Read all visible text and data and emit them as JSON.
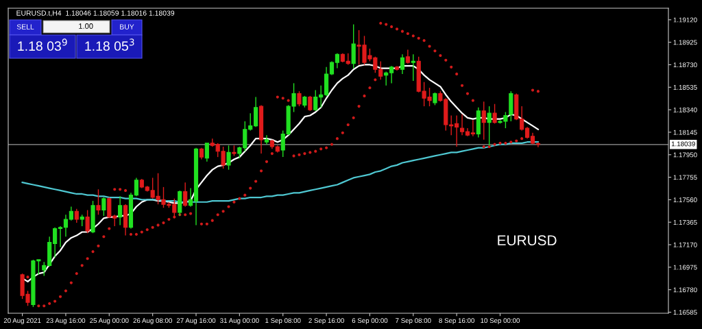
{
  "chart_data": {
    "type": "candlestick",
    "title": "EURUSD.t,H4  1.18046 1.18059 1.18016 1.18039",
    "annotations": [
      "EURUSD",
      "SELL",
      "1.00",
      "BUY",
      "1.18 03$^{9}$",
      "1.18 05$^{3}$"
    ],
    "categories": [
      "20 Aug 2021",
      null,
      null,
      null,
      null,
      null,
      null,
      null,
      "23 Aug 16:00",
      null,
      null,
      null,
      null,
      null,
      null,
      null,
      "25 Aug 00:00",
      null,
      null,
      null,
      null,
      null,
      null,
      null,
      "26 Aug 08:00",
      null,
      null,
      null,
      null,
      null,
      null,
      null,
      "27 Aug 16:00",
      null,
      null,
      null,
      null,
      null,
      null,
      null,
      "31 Aug 00:00",
      null,
      null,
      null,
      null,
      null,
      null,
      null,
      "1 Sep 08:00",
      null,
      null,
      null,
      null,
      null,
      null,
      null,
      "2 Sep 16:00",
      null,
      null,
      null,
      null,
      null,
      null,
      null,
      "6 Sep 00:00",
      null,
      null,
      null,
      null,
      null,
      null,
      null,
      "7 Sep 08:00",
      null,
      null,
      null,
      null,
      null,
      null,
      null,
      "8 Sep 16:00",
      null,
      null,
      null,
      null,
      null,
      null,
      null,
      "10 Sep 00:00",
      null,
      null,
      null,
      null,
      null,
      null,
      null
    ],
    "ohlc": [
      [
        1.1691,
        1.1692,
        1.167,
        1.1673
      ],
      [
        1.1674,
        1.1677,
        1.1664,
        1.1667
      ],
      [
        1.1665,
        1.1704,
        1.1663,
        1.1703
      ],
      [
        1.1703,
        1.1704,
        1.1691,
        1.1704
      ],
      [
        1.1695,
        1.1702,
        1.169,
        1.1699
      ],
      [
        1.1699,
        1.1724,
        1.1698,
        1.1719
      ],
      [
        1.1718,
        1.1732,
        1.1706,
        1.1731
      ],
      [
        1.1731,
        1.1733,
        1.1715,
        1.1732
      ],
      [
        1.1732,
        1.1743,
        1.1724,
        1.1739
      ],
      [
        1.1739,
        1.175,
        1.1738,
        1.1746
      ],
      [
        1.1746,
        1.1748,
        1.1736,
        1.1739
      ],
      [
        1.1739,
        1.1743,
        1.1733,
        1.1741
      ],
      [
        1.1741,
        1.1747,
        1.1727,
        1.1729
      ],
      [
        1.1728,
        1.1755,
        1.1727,
        1.1751
      ],
      [
        1.1751,
        1.1765,
        1.1743,
        1.1747
      ],
      [
        1.1747,
        1.1758,
        1.1742,
        1.1757
      ],
      [
        1.1757,
        1.1758,
        1.174,
        1.1741
      ],
      [
        1.1742,
        1.1743,
        1.1733,
        1.174
      ],
      [
        1.1741,
        1.1759,
        1.1734,
        1.1751
      ],
      [
        1.1751,
        1.1752,
        1.1725,
        1.1732
      ],
      [
        1.1732,
        1.1762,
        1.1731,
        1.176
      ],
      [
        1.176,
        1.1775,
        1.1759,
        1.1773
      ],
      [
        1.1773,
        1.1774,
        1.1766,
        1.1767
      ],
      [
        1.1767,
        1.1768,
        1.1763,
        1.1764
      ],
      [
        1.1764,
        1.1775,
        1.1757,
        1.1758
      ],
      [
        1.1759,
        1.1779,
        1.1752,
        1.1756
      ],
      [
        1.1756,
        1.1767,
        1.1749,
        1.1752
      ],
      [
        1.1752,
        1.1754,
        1.1749,
        1.1751
      ],
      [
        1.1752,
        1.1757,
        1.174,
        1.1745
      ],
      [
        1.1745,
        1.1764,
        1.1742,
        1.1763
      ],
      [
        1.1763,
        1.1771,
        1.175,
        1.1751
      ],
      [
        1.1751,
        1.1766,
        1.175,
        1.1756
      ],
      [
        1.1755,
        1.1801,
        1.1734,
        1.18
      ],
      [
        1.18,
        1.1801,
        1.1791,
        1.1793
      ],
      [
        1.1792,
        1.1805,
        1.1789,
        1.1805
      ],
      [
        1.1805,
        1.1809,
        1.1802,
        1.1803
      ],
      [
        1.1804,
        1.1805,
        1.1793,
        1.1798
      ],
      [
        1.1798,
        1.1802,
        1.1783,
        1.1786
      ],
      [
        1.1786,
        1.1803,
        1.1782,
        1.1797
      ],
      [
        1.1797,
        1.1803,
        1.1794,
        1.1796
      ],
      [
        1.1796,
        1.1802,
        1.1792,
        1.1801
      ],
      [
        1.1801,
        1.1824,
        1.1798,
        1.1817
      ],
      [
        1.1817,
        1.1831,
        1.1816,
        1.182
      ],
      [
        1.182,
        1.1845,
        1.1819,
        1.1836
      ],
      [
        1.1837,
        1.1838,
        1.1796,
        1.1808
      ],
      [
        1.1806,
        1.1812,
        1.1804,
        1.1808
      ],
      [
        1.1807,
        1.1808,
        1.18,
        1.1802
      ],
      [
        1.1802,
        1.1803,
        1.1797,
        1.1798
      ],
      [
        1.1799,
        1.1816,
        1.1793,
        1.1813
      ],
      [
        1.1813,
        1.1838,
        1.1812,
        1.1837
      ],
      [
        1.1837,
        1.1857,
        1.1832,
        1.1848
      ],
      [
        1.1848,
        1.185,
        1.1837,
        1.1839
      ],
      [
        1.1838,
        1.1846,
        1.1836,
        1.1845
      ],
      [
        1.1845,
        1.1846,
        1.1833,
        1.1834
      ],
      [
        1.1834,
        1.1851,
        1.1833,
        1.1845
      ],
      [
        1.1845,
        1.1855,
        1.1836,
        1.1847
      ],
      [
        1.1847,
        1.1871,
        1.1846,
        1.1865
      ],
      [
        1.1865,
        1.1876,
        1.1864,
        1.1875
      ],
      [
        1.1875,
        1.1883,
        1.187,
        1.1882
      ],
      [
        1.1882,
        1.1883,
        1.1875,
        1.1876
      ],
      [
        1.1876,
        1.1883,
        1.1873,
        1.1874
      ],
      [
        1.1874,
        1.1908,
        1.187,
        1.1891
      ],
      [
        1.189,
        1.1903,
        1.1873,
        1.1889
      ],
      [
        1.189,
        1.1898,
        1.1873,
        1.1875
      ],
      [
        1.1881,
        1.1887,
        1.1876,
        1.1878
      ],
      [
        1.1879,
        1.188,
        1.1866,
        1.1869
      ],
      [
        1.1869,
        1.1876,
        1.186,
        1.1863
      ],
      [
        1.1864,
        1.1867,
        1.1855,
        1.1866
      ],
      [
        1.1866,
        1.1872,
        1.1857,
        1.1871
      ],
      [
        1.1871,
        1.1872,
        1.1868,
        1.1869
      ],
      [
        1.1869,
        1.1882,
        1.1865,
        1.1879
      ],
      [
        1.188,
        1.1886,
        1.1874,
        1.1875
      ],
      [
        1.1875,
        1.1882,
        1.1859,
        1.1876
      ],
      [
        1.1876,
        1.188,
        1.1849,
        1.185
      ],
      [
        1.185,
        1.1858,
        1.1837,
        1.1844
      ],
      [
        1.1845,
        1.1853,
        1.1837,
        1.1842
      ],
      [
        1.184,
        1.1849,
        1.1838,
        1.1848
      ],
      [
        1.1848,
        1.185,
        1.1841,
        1.1842
      ],
      [
        1.1843,
        1.1844,
        1.1816,
        1.1821
      ],
      [
        1.1821,
        1.1829,
        1.1812,
        1.182
      ],
      [
        1.1822,
        1.1829,
        1.1802,
        1.1819
      ],
      [
        1.1818,
        1.183,
        1.1812,
        1.1815
      ],
      [
        1.1815,
        1.1818,
        1.1811,
        1.1812
      ],
      [
        1.1814,
        1.1825,
        1.1811,
        1.1813
      ],
      [
        1.1813,
        1.1836,
        1.181,
        1.1833
      ],
      [
        1.1833,
        1.1841,
        1.1808,
        1.1823
      ],
      [
        1.1823,
        1.1837,
        1.1803,
        1.1831
      ],
      [
        1.1831,
        1.1839,
        1.1822,
        1.1823
      ],
      [
        1.1823,
        1.1825,
        1.1822,
        1.1824
      ],
      [
        1.1824,
        1.1832,
        1.1818,
        1.1829
      ],
      [
        1.183,
        1.185,
        1.1824,
        1.1848
      ],
      [
        1.1847,
        1.1848,
        1.1825,
        1.1826
      ],
      [
        1.1826,
        1.1837,
        1.1816,
        1.1817
      ],
      [
        1.1818,
        1.1819,
        1.1809,
        1.181
      ],
      [
        1.1811,
        1.1814,
        1.1804,
        1.1805
      ],
      [
        1.18046,
        1.18059,
        1.18016,
        1.18039
      ]
    ],
    "colors": [
      "#e01b1b",
      "#e01b1b",
      "#21e021",
      "#21e021",
      "#21e021",
      "#21e021",
      "#21e021",
      "#21e021",
      "#21e021",
      "#21e021",
      "#e01b1b",
      "#21e021",
      "#e01b1b",
      "#21e021",
      "#e01b1b",
      "#21e021",
      "#e01b1b",
      "#e01b1b",
      "#21e021",
      "#e01b1b",
      "#21e021",
      "#21e021",
      "#e01b1b",
      "#e01b1b",
      "#e01b1b",
      "#e01b1b",
      "#e01b1b",
      "#e01b1b",
      "#e01b1b",
      "#21e021",
      "#e01b1b",
      "#21e021",
      "#21e021",
      "#e01b1b",
      "#21e021",
      "#e01b1b",
      "#e01b1b",
      "#e01b1b",
      "#21e021",
      "#e01b1b",
      "#21e021",
      "#21e021",
      "#21e021",
      "#21e021",
      "#e01b1b",
      "#21e021",
      "#e01b1b",
      "#e01b1b",
      "#21e021",
      "#21e021",
      "#21e021",
      "#e01b1b",
      "#21e021",
      "#e01b1b",
      "#21e021",
      "#21e021",
      "#21e021",
      "#21e021",
      "#21e021",
      "#e01b1b",
      "#e01b1b",
      "#21e021",
      "#e01b1b",
      "#e01b1b",
      "#e01b1b",
      "#e01b1b",
      "#e01b1b",
      "#21e021",
      "#21e021",
      "#e01b1b",
      "#21e021",
      "#e01b1b",
      "#21e021",
      "#e01b1b",
      "#e01b1b",
      "#e01b1b",
      "#21e021",
      "#e01b1b",
      "#e01b1b",
      "#e01b1b",
      "#e01b1b",
      "#e01b1b",
      "#e01b1b",
      "#e01b1b",
      "#21e021",
      "#e01b1b",
      "#21e021",
      "#e01b1b",
      "#21e021",
      "#21e021",
      "#21e021",
      "#e01b1b",
      "#e01b1b",
      "#e01b1b",
      "#e01b1b",
      "#e01b1b"
    ],
    "series": [
      {
        "type": "line",
        "color": "#ffffff",
        "values": [
          1.1688,
          1.1685,
          1.1689,
          1.1692,
          1.1693,
          1.17,
          1.1707,
          1.1712,
          1.1719,
          1.1723,
          1.1725,
          1.1728,
          1.1728,
          1.1731,
          1.1735,
          1.174,
          1.1741,
          1.1741,
          1.1742,
          1.1742,
          1.1744,
          1.175,
          1.1754,
          1.1756,
          1.1756,
          1.1755,
          1.1755,
          1.1754,
          1.1753,
          1.1753,
          1.1754,
          1.1755,
          1.1765,
          1.1771,
          1.1777,
          1.1782,
          1.1785,
          1.1786,
          1.1788,
          1.1791,
          1.1793,
          1.1798,
          1.1803,
          1.1809,
          1.1809,
          1.1809,
          1.1808,
          1.1806,
          1.1808,
          1.1812,
          1.1817,
          1.1822,
          1.1828,
          1.1829,
          1.1832,
          1.1836,
          1.1844,
          1.1851,
          1.1857,
          1.1861,
          1.1864,
          1.1869,
          1.1872,
          1.1873,
          1.1873,
          1.1872,
          1.187,
          1.187,
          1.187,
          1.187,
          1.1872,
          1.1872,
          1.1872,
          1.1869,
          1.1864,
          1.186,
          1.1857,
          1.1854,
          1.1847,
          1.1841,
          1.1836,
          1.1831,
          1.1827,
          1.1826,
          1.1827,
          1.1827,
          1.1826,
          1.1826,
          1.1826,
          1.1827,
          1.183,
          1.1829,
          1.1826,
          1.1823,
          1.182,
          1.1817
        ]
      },
      {
        "type": "line",
        "color": "#4fc8d2",
        "values": [
          1.1771,
          1.177,
          1.1769,
          1.1768,
          1.1767,
          1.1766,
          1.1765,
          1.1764,
          1.1763,
          1.1762,
          1.1761,
          1.1761,
          1.176,
          1.176,
          1.1759,
          1.1759,
          1.1758,
          1.1758,
          1.1758,
          1.1757,
          1.1757,
          1.1757,
          1.1756,
          1.1756,
          1.1756,
          1.1756,
          1.1755,
          1.1755,
          1.1755,
          1.1754,
          1.1754,
          1.1754,
          1.1754,
          1.1754,
          1.1754,
          1.1755,
          1.1755,
          1.1755,
          1.1755,
          1.1756,
          1.1757,
          1.1757,
          1.1758,
          1.1758,
          1.1758,
          1.1759,
          1.1759,
          1.176,
          1.176,
          1.1761,
          1.1762,
          1.1762,
          1.1763,
          1.1764,
          1.1765,
          1.1766,
          1.1767,
          1.1768,
          1.1769,
          1.1771,
          1.1773,
          1.1775,
          1.1776,
          1.1777,
          1.1778,
          1.178,
          1.1781,
          1.1783,
          1.1785,
          1.1786,
          1.1788,
          1.1789,
          1.179,
          1.1791,
          1.1792,
          1.1793,
          1.1794,
          1.1795,
          1.1796,
          1.1797,
          1.1797,
          1.1798,
          1.1799,
          1.18,
          1.1801,
          1.1801,
          1.1802,
          1.1803,
          1.1804,
          1.1804,
          1.1805,
          1.1805,
          1.1805,
          1.1806,
          1.1806,
          1.1806
        ]
      },
      {
        "type": "scatter",
        "color": "#d01a1a",
        "marker": "circle",
        "values": [
          null,
          1.1689,
          null,
          1.1664,
          1.1664,
          1.1666,
          1.1668,
          1.1672,
          1.1677,
          1.1684,
          1.1692,
          1.1699,
          1.1705,
          1.1711,
          1.1716,
          1.1724,
          1.1731,
          1.1765,
          1.1765,
          1.1764,
          1.1726,
          1.1726,
          1.1728,
          1.173,
          1.1732,
          1.1734,
          1.1736,
          1.1739,
          1.1741,
          1.1743,
          1.1743,
          1.1744,
          null,
          1.1735,
          1.1735,
          1.1738,
          1.1743,
          1.1746,
          1.175,
          1.1754,
          1.1757,
          1.176,
          1.1766,
          1.1772,
          1.1781,
          1.1789,
          1.1796,
          1.1845,
          1.1844,
          1.1842,
          1.1794,
          1.1795,
          1.1796,
          1.1797,
          1.1798,
          1.18,
          1.1801,
          1.1804,
          1.1809,
          1.1814,
          1.1821,
          1.1827,
          1.1837,
          1.1846,
          1.1853,
          1.186,
          1.1909,
          1.1908,
          1.1906,
          1.1904,
          1.1902,
          1.19,
          1.1898,
          1.1896,
          1.1894,
          1.1889,
          1.1885,
          1.1881,
          1.1877,
          1.1871,
          1.1865,
          1.1855,
          1.1848,
          1.1842,
          null,
          1.1802,
          1.1802,
          1.1804,
          1.1805,
          1.1805,
          1.1806,
          1.1807,
          1.1809,
          null,
          1.1851,
          1.185
        ]
      }
    ],
    "ref_lines": [
      {
        "axis": "y",
        "value": 1.18039,
        "label": "1.18039",
        "color": "#9a9a9a"
      }
    ],
    "ylim": [
      1.16576,
      1.1922
    ],
    "yticks": [
      {
        "value": 1.16585,
        "label": "1.16585"
      },
      {
        "value": 1.1678,
        "label": "1.16780"
      },
      {
        "value": 1.16975,
        "label": "1.16975"
      },
      {
        "value": 1.1717,
        "label": "1.17170"
      },
      {
        "value": 1.17365,
        "label": "1.17365"
      },
      {
        "value": 1.1756,
        "label": "1.17560"
      },
      {
        "value": 1.17755,
        "label": "1.17755"
      },
      {
        "value": 1.1795,
        "label": "1.17950"
      },
      {
        "value": 1.18145,
        "label": "1.18145"
      },
      {
        "value": 1.1834,
        "label": "1.18340"
      },
      {
        "value": 1.18535,
        "label": "1.18535"
      },
      {
        "value": 1.1873,
        "label": "1.18730"
      },
      {
        "value": 1.18925,
        "label": "1.18925"
      },
      {
        "value": 1.1912,
        "label": "1.19120"
      }
    ]
  }
}
